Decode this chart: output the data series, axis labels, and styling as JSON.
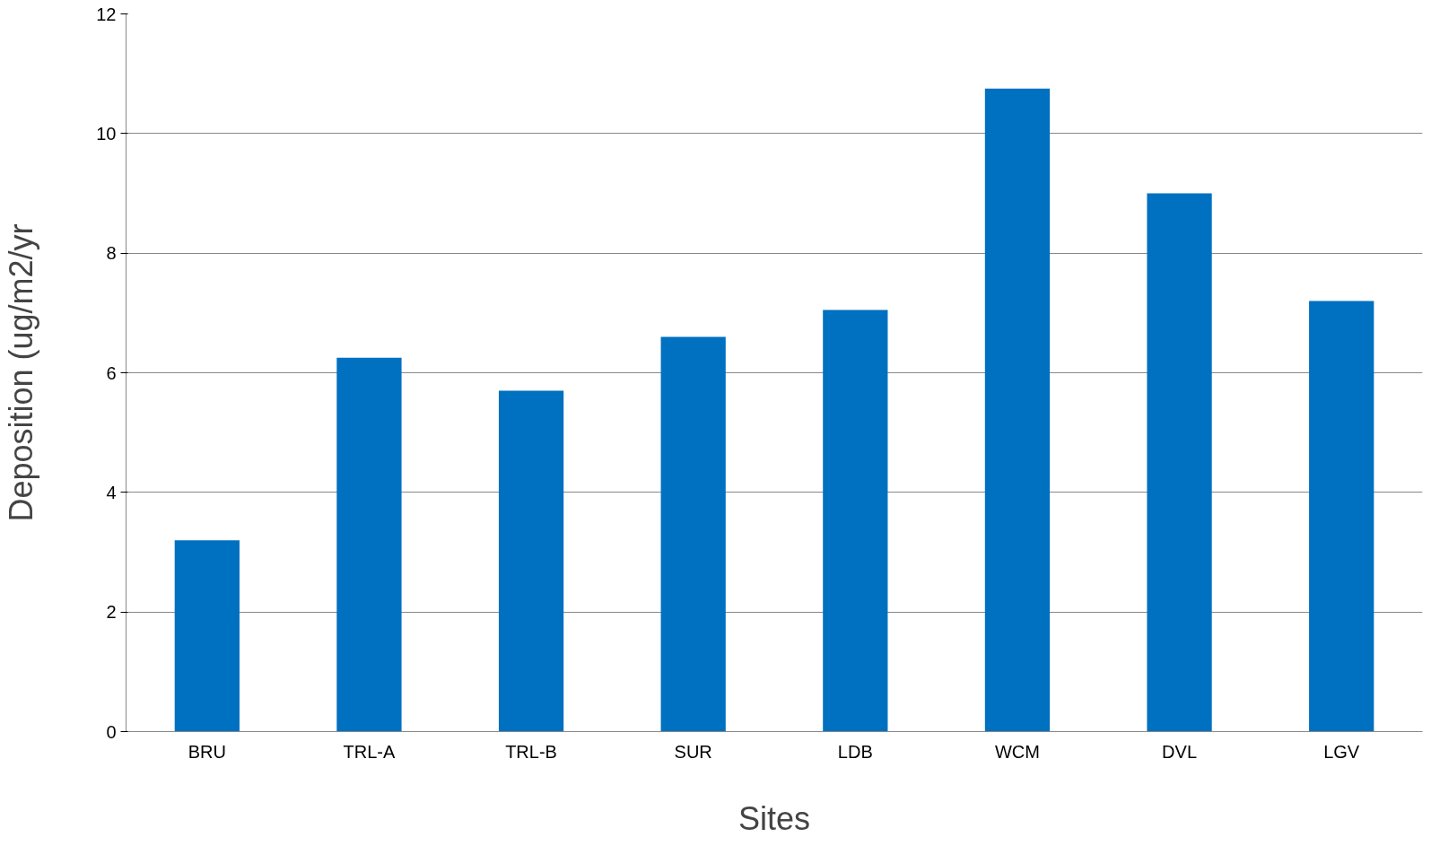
{
  "chart_data": {
    "type": "bar",
    "xlabel": "Sites",
    "ylabel": "Deposition (ug/m2/yr",
    "categories": [
      "BRU",
      "TRL-A",
      "TRL-B",
      "SUR",
      "LDB",
      "WCM",
      "DVL",
      "LGV"
    ],
    "values": [
      3.2,
      6.25,
      5.7,
      6.6,
      7.05,
      10.75,
      9.0,
      7.2
    ],
    "color": "#0070c0",
    "ylim": [
      0,
      12
    ],
    "yticks": [
      0,
      2,
      4,
      6,
      8,
      10,
      12
    ],
    "grid": "y"
  }
}
